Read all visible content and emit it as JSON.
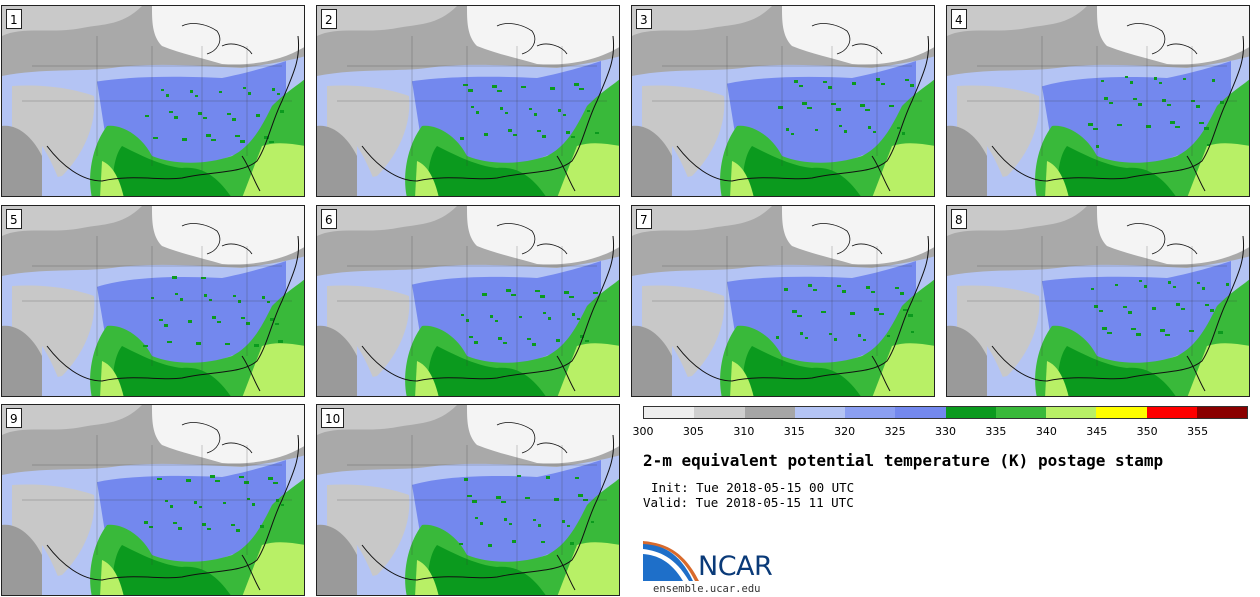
{
  "panels": [
    {
      "label": "1"
    },
    {
      "label": "2"
    },
    {
      "label": "3"
    },
    {
      "label": "4"
    },
    {
      "label": "5"
    },
    {
      "label": "6"
    },
    {
      "label": "7"
    },
    {
      "label": "8"
    },
    {
      "label": "9"
    },
    {
      "label": "10"
    }
  ],
  "colorbar": {
    "ticks": [
      "300",
      "305",
      "310",
      "315",
      "320",
      "325",
      "330",
      "335",
      "340",
      "345",
      "350",
      "355"
    ],
    "colors": [
      "#eeeeee",
      "#cfcfcf",
      "#a6a6a6",
      "#b4c4f4",
      "#8b9ff2",
      "#7388ee",
      "#0b9a1e",
      "#39b93a",
      "#b8f066",
      "#ffff00",
      "#ff0000",
      "#8a0000"
    ]
  },
  "title": "2-m equivalent potential temperature (K) postage stamp",
  "init": "Init: Tue 2018-05-15 00 UTC",
  "valid": "Valid: Tue 2018-05-15 11 UTC",
  "logo": {
    "text": "NCAR",
    "color": "#0a3a78"
  },
  "site": "ensemble.ucar.edu"
}
